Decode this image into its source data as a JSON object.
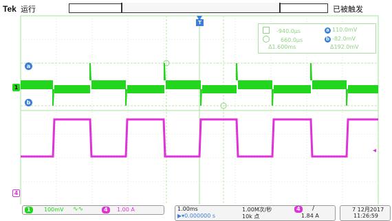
{
  "header": {
    "brand": "Tek",
    "run_state": "运行",
    "trigger_status": "已被触发"
  },
  "markers": {
    "trigger_pos": "T",
    "ch1": "1",
    "ch4": "4",
    "cursor_a": "a",
    "cursor_b": "b"
  },
  "cursor_readout": {
    "a_time": "-940.0µs",
    "b_time": "660.0µs",
    "delta_time": "Δ1.600ms",
    "a_dot": "a",
    "b_dot": "b",
    "a_value": "110.0mV",
    "b_value": "-82.0mV",
    "delta_value": "Δ192.0mV"
  },
  "bottom_bar": {
    "ch1_badge": "1",
    "ch1_scale": "100mV",
    "ch1_coupling": "∿∿",
    "ch4_badge": "4",
    "ch4_scale": "1.00 A",
    "timebase": "1.00ms",
    "position": "▶▾0.000000 s",
    "sample_rate": "1.00M次/秒",
    "record_length": "10k 点",
    "trig_badge": "4",
    "trig_slope": "/",
    "trig_level": "1.84 A",
    "date": "7 12月2017",
    "time": "11:26:59"
  },
  "colors": {
    "ch1": "#22d61e",
    "ch4": "#e032d8",
    "grid": "#9fe795",
    "cursor": "#c9f0b9",
    "marker_blue": "#3a7fd9"
  }
}
